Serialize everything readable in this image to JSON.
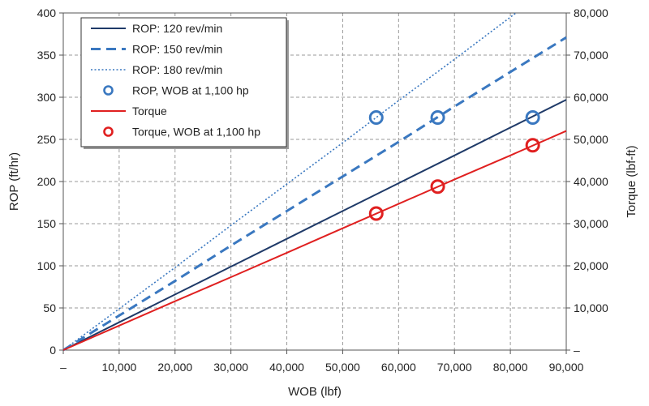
{
  "chart_data": {
    "type": "line",
    "xlabel": "WOB (lbf)",
    "ylabel": "ROP (ft/hr)",
    "y2label": "Torque (lbf-ft)",
    "xlim": [
      0,
      90000
    ],
    "ylim": [
      0,
      400
    ],
    "y2lim": [
      0,
      80000
    ],
    "x_ticks": [
      0,
      10000,
      20000,
      30000,
      40000,
      50000,
      60000,
      70000,
      80000,
      90000
    ],
    "x_tick_labels": [
      "–",
      "10,000",
      "20,000",
      "30,000",
      "40,000",
      "50,000",
      "60,000",
      "70,000",
      "80,000",
      "90,000"
    ],
    "y_ticks": [
      0,
      50,
      100,
      150,
      200,
      250,
      300,
      350,
      400
    ],
    "y_tick_labels": [
      "0",
      "50",
      "100",
      "150",
      "200",
      "250",
      "300",
      "350",
      "400"
    ],
    "y2_ticks": [
      0,
      10000,
      20000,
      30000,
      40000,
      50000,
      60000,
      70000,
      80000
    ],
    "y2_tick_labels": [
      "–",
      "10,000",
      "20,000",
      "30,000",
      "40,000",
      "50,000",
      "60,000",
      "70,000",
      "80,000"
    ],
    "grid": true,
    "legend_position": "top-left",
    "series": [
      {
        "name": "ROP: 120 rev/min",
        "axis": "left",
        "style": "solid",
        "color": "#1f3a68",
        "x": [
          0,
          10000,
          20000,
          30000,
          40000,
          50000,
          60000,
          70000,
          80000,
          90000
        ],
        "y": [
          0,
          33,
          66,
          99,
          132,
          165,
          198,
          231,
          264,
          297
        ]
      },
      {
        "name": "ROP: 150 rev/min",
        "axis": "left",
        "style": "dashed",
        "color": "#3a78c0",
        "x": [
          0,
          10000,
          20000,
          30000,
          40000,
          50000,
          60000,
          70000,
          80000,
          90000
        ],
        "y": [
          0,
          41,
          82,
          124,
          165,
          206,
          247,
          289,
          330,
          371
        ]
      },
      {
        "name": "ROP: 180 rev/min",
        "axis": "left",
        "style": "dotted",
        "color": "#3a78c0",
        "x": [
          0,
          10000,
          20000,
          30000,
          40000,
          50000,
          60000,
          70000,
          81000
        ],
        "y": [
          0,
          49,
          98,
          148,
          197,
          246,
          296,
          345,
          400
        ]
      },
      {
        "name": "ROP, WOB at 1,100 hp",
        "axis": "left",
        "style": "marker",
        "color": "#3a78c0",
        "x": [
          56000,
          67000,
          84000
        ],
        "y": [
          276,
          276,
          276
        ]
      },
      {
        "name": "Torque",
        "axis": "right",
        "style": "solid",
        "color": "#e02020",
        "x": [
          0,
          10000,
          20000,
          30000,
          40000,
          50000,
          60000,
          70000,
          80000,
          90000
        ],
        "y": [
          0,
          5800,
          11600,
          17300,
          23100,
          28900,
          34700,
          40500,
          46200,
          52000
        ]
      },
      {
        "name": "Torque, WOB at 1,100 hp",
        "axis": "right",
        "style": "marker",
        "color": "#e02020",
        "x": [
          56000,
          67000,
          84000
        ],
        "y": [
          32400,
          38800,
          48600
        ]
      }
    ]
  }
}
